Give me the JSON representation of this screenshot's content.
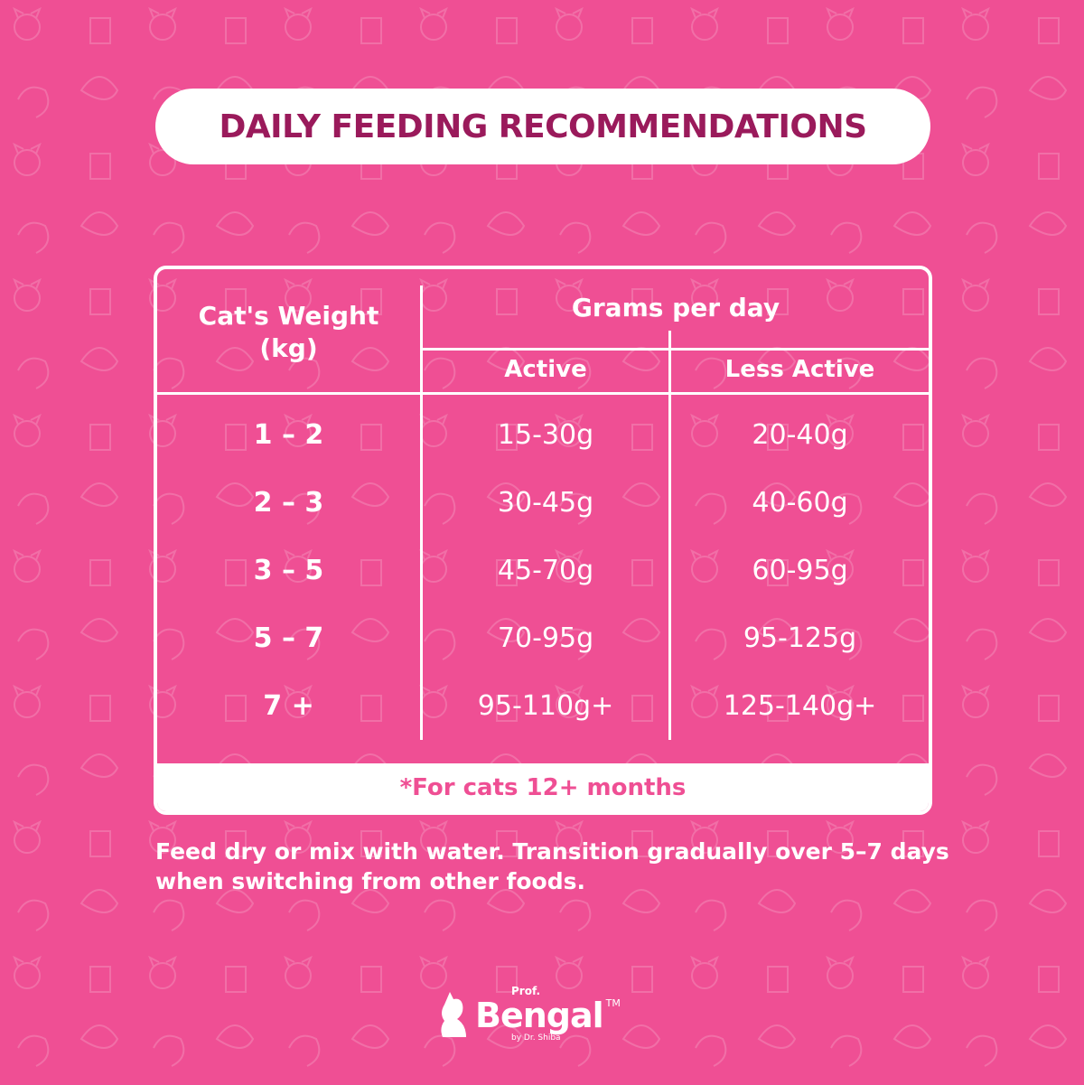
{
  "title": "DAILY FEEDING RECOMMENDATIONS",
  "colors": {
    "background": "#EF4F94",
    "title": "#9A1A5B",
    "panel": "#FFFFFF"
  },
  "table": {
    "weight_header_line1": "Cat's Weight",
    "weight_header_line2": "(kg)",
    "group_header": "Grams per day",
    "columns": [
      "Active",
      "Less Active"
    ],
    "rows": [
      {
        "weight": "1 – 2",
        "active": "15-30g",
        "less_active": "20-40g"
      },
      {
        "weight": "2 – 3",
        "active": "30-45g",
        "less_active": "40-60g"
      },
      {
        "weight": "3 – 5",
        "active": "45-70g",
        "less_active": "60-95g"
      },
      {
        "weight": "5 – 7",
        "active": "70-95g",
        "less_active": "95-125g"
      },
      {
        "weight": "7 +",
        "active": "95-110g+",
        "less_active": "125-140g+"
      }
    ],
    "footnote": "*For cats 12+ months"
  },
  "note": "Feed dry or mix with water. Transition gradually over 5–7 days when switching from other foods.",
  "logo": {
    "prefix": "Prof.",
    "name": "Bengal",
    "tm": "TM",
    "tagline": "by Dr. Shiba",
    "icon": "cat-silhouette-icon"
  }
}
